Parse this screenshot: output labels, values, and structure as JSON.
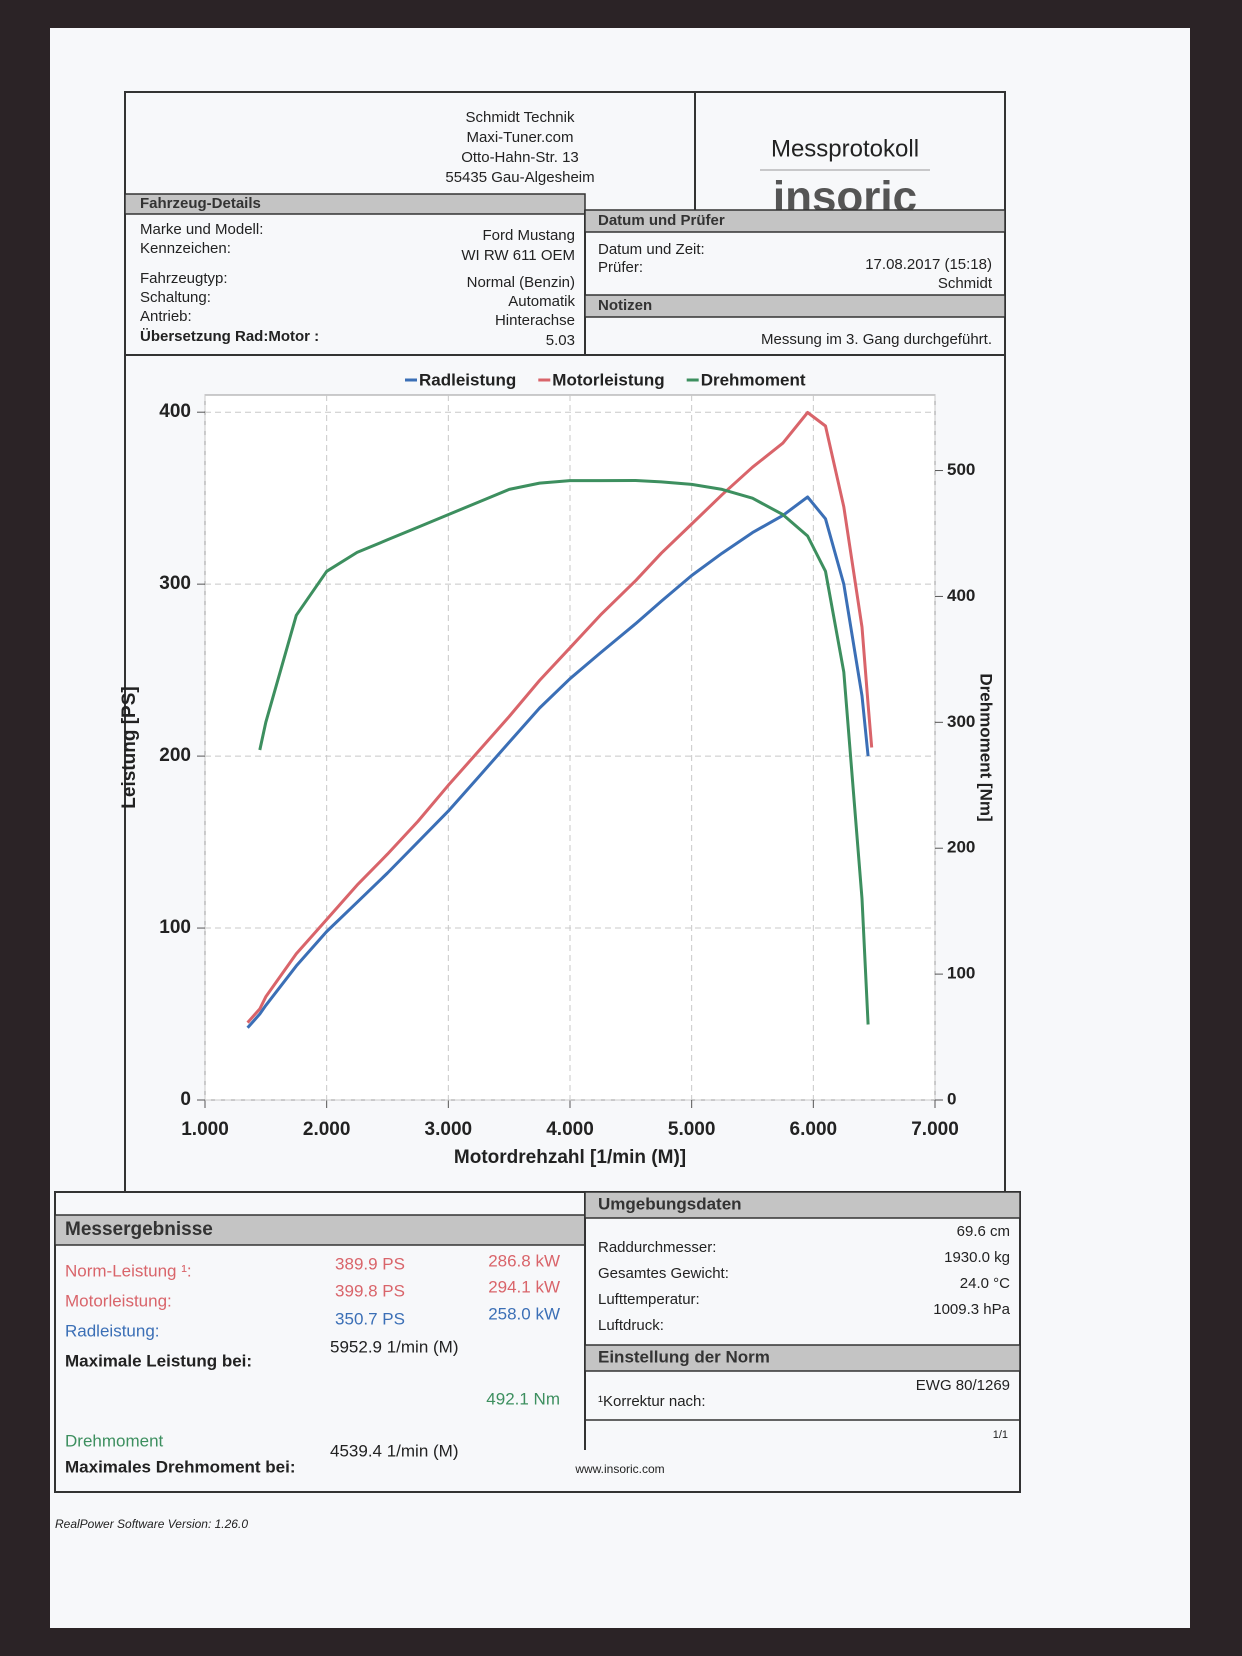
{
  "header": {
    "address": [
      "Schmidt Technik",
      "Maxi-Tuner.com",
      "Otto-Hahn-Str. 13",
      "55435 Gau-Algesheim"
    ],
    "title": "Messprotokoll",
    "brand": "insoric"
  },
  "vehicle": {
    "title": "Fahrzeug-Details",
    "rows": [
      [
        "Marke und Modell:",
        "Ford Mustang"
      ],
      [
        "Kennzeichen:",
        "WI RW 611 OEM"
      ],
      [
        "Fahrzeugtyp:",
        "Normal (Benzin)"
      ],
      [
        "Schaltung:",
        "Automatik"
      ],
      [
        "Antrieb:",
        "Hinterachse"
      ],
      [
        "Übersetzung Rad:Motor :",
        "5.03"
      ]
    ]
  },
  "inspection": {
    "title": "Datum und Prüfer",
    "rows": [
      [
        "Datum und Zeit:",
        "17.08.2017 (15:18)"
      ],
      [
        "Prüfer:",
        "Schmidt"
      ]
    ]
  },
  "notes": {
    "title": "Notizen",
    "text": "Messung im 3. Gang durchgeführt."
  },
  "chart_data": {
    "type": "line",
    "xlabel": "Motordrehzahl [1/min (M)]",
    "ylabel": "Leistung [PS]",
    "y2label": "Drehmoment [Nm]",
    "x": [
      1350,
      1450,
      1500,
      1750,
      2000,
      2250,
      2500,
      2750,
      3000,
      3250,
      3500,
      3750,
      4000,
      4250,
      4539,
      4750,
      5000,
      5250,
      5500,
      5750,
      5953,
      6100,
      6250,
      6400,
      6450,
      6480
    ],
    "series": [
      {
        "name": "Radleistung",
        "color": "#3b6fb6",
        "values": [
          42,
          50,
          55,
          78,
          98,
          115,
          132,
          150,
          168,
          188,
          208,
          228,
          245,
          260,
          277,
          290,
          305,
          318,
          330,
          340,
          350.7,
          338,
          300,
          235,
          200,
          null
        ]
      },
      {
        "name": "Motorleistung",
        "color": "#d9646a",
        "values": [
          45,
          53,
          60,
          85,
          105,
          125,
          143,
          162,
          183,
          203,
          223,
          244,
          263,
          282,
          302,
          318,
          335,
          352,
          368,
          382,
          399.8,
          392,
          345,
          275,
          230,
          205
        ]
      },
      {
        "name": "Drehmoment",
        "color": "#3d8f5f",
        "axis": "y2",
        "values": [
          null,
          278,
          300,
          385,
          420,
          435,
          445,
          455,
          465,
          475,
          485,
          490,
          492,
          492,
          492.1,
          491,
          489,
          485,
          478,
          465,
          448,
          420,
          340,
          160,
          60,
          null
        ]
      }
    ],
    "xlim": [
      1000,
      7000
    ],
    "xticks": [
      {
        "value": 1000,
        "label": "1.000"
      },
      {
        "value": 2000,
        "label": "2.000"
      },
      {
        "value": 3000,
        "label": "3.000"
      },
      {
        "value": 4000,
        "label": "4.000"
      },
      {
        "value": 5000,
        "label": "5.000"
      },
      {
        "value": 6000,
        "label": "6.000"
      },
      {
        "value": 7000,
        "label": "7.000"
      }
    ],
    "ylim": [
      0,
      410
    ],
    "yticks": [
      0,
      100,
      200,
      300,
      400
    ],
    "y2lim": [
      0,
      560
    ],
    "y2ticks": [
      0,
      100,
      200,
      300,
      400,
      500
    ],
    "grid": true
  },
  "results": {
    "title": "Messergebnisse",
    "rows": [
      [
        "Norm-Leistung ¹:",
        "389.9 PS",
        "286.8 kW"
      ],
      [
        "Motorleistung:",
        "399.8 PS",
        "294.1 kW"
      ],
      [
        "Radleistung:",
        "350.7 PS",
        "258.0 kW"
      ]
    ],
    "max_power": [
      "Maximale Leistung bei:",
      "5952.9 1/min (M)"
    ],
    "torque": [
      "Drehmoment",
      "492.1 Nm"
    ],
    "max_torque": [
      "Maximales Drehmoment bei:",
      "4539.4 1/min (M)"
    ]
  },
  "environment": {
    "title": "Umgebungsdaten",
    "rows": [
      [
        "Raddurchmesser:",
        "69.6 cm"
      ],
      [
        "Gesamtes Gewicht:",
        "1930.0 kg"
      ],
      [
        "Lufttemperatur:",
        "24.0 °C"
      ],
      [
        "Luftdruck:",
        "1009.3 hPa"
      ]
    ]
  },
  "norm": {
    "title": "Einstellung der Norm",
    "label": "¹Korrektur nach:",
    "value": "EWG 80/1269"
  },
  "footer": {
    "page": "1/1",
    "url": "www.insoric.com",
    "software": "RealPower Software Version: 1.26.0"
  }
}
